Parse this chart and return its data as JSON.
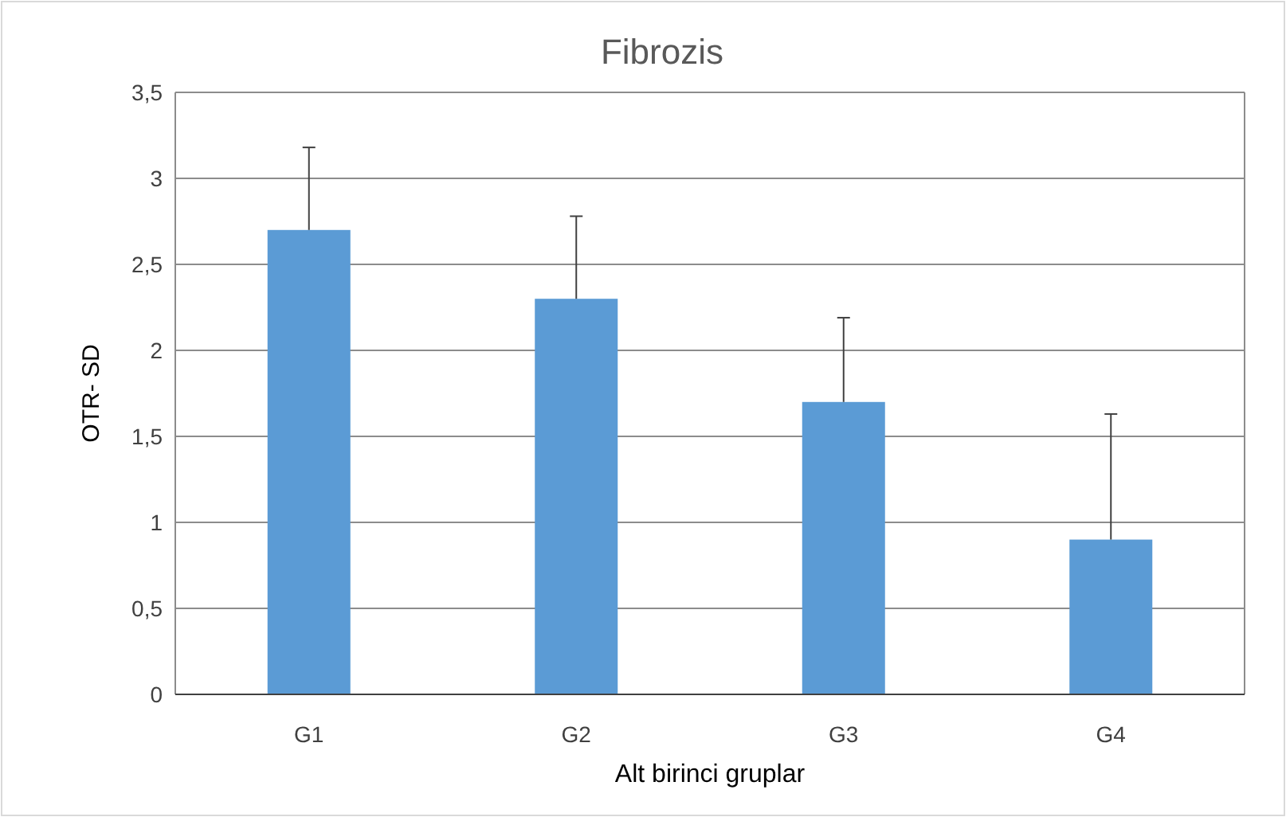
{
  "chart_data": {
    "type": "bar",
    "title": "Fibrozis",
    "xlabel": "Alt birinci gruplar",
    "ylabel": "OTR- SD",
    "categories": [
      "G1",
      "G2",
      "G3",
      "G4"
    ],
    "values": [
      2.7,
      2.3,
      1.7,
      0.9
    ],
    "errors": [
      [
        2.7,
        3.18
      ],
      [
        2.3,
        2.78
      ],
      [
        1.7,
        2.19
      ],
      [
        0.9,
        1.63
      ]
    ],
    "color": "#5b9bd5",
    "ylim": [
      0,
      3.5
    ],
    "yticks": [
      0,
      {
        "value": 0.5,
        "label": "0,5"
      },
      1,
      {
        "value": 1.5,
        "label": "1,5"
      },
      2,
      {
        "value": 2.5,
        "label": "2,5"
      },
      3,
      {
        "value": 3.5,
        "label": "3,5"
      }
    ],
    "grid": "y"
  }
}
